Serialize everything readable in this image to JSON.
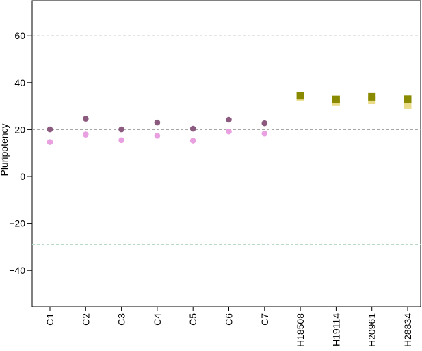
{
  "chart_data": {
    "type": "scatter",
    "ylabel": "Pluripotency",
    "ylim": [
      -56,
      76
    ],
    "yticks": [
      -40,
      -20,
      0,
      20,
      40,
      60
    ],
    "categories": [
      "C1",
      "C2",
      "C3",
      "C4",
      "C5",
      "C6",
      "C7",
      "H18508",
      "H19114",
      "H20961",
      "H28834"
    ],
    "reference_lines": [
      {
        "y": 60,
        "color": "#999999"
      },
      {
        "y": 20,
        "color": "#999999"
      },
      {
        "y": -29,
        "color": "#b8d8c8"
      }
    ],
    "series": [
      {
        "marker": "circle",
        "color": "#8b5a7e",
        "values": [
          20.1,
          24.6,
          20.1,
          23.0,
          20.4,
          24.2,
          22.7,
          null,
          null,
          null,
          null
        ]
      },
      {
        "marker": "circle",
        "color": "#e8a0e0",
        "values": [
          14.7,
          17.9,
          15.5,
          17.4,
          15.3,
          19.2,
          18.3,
          null,
          null,
          null,
          null
        ]
      },
      {
        "marker": "square",
        "color": "#eadb88",
        "values": [
          null,
          null,
          null,
          null,
          null,
          null,
          null,
          34.0,
          31.7,
          32.5,
          30.5
        ]
      },
      {
        "marker": "square",
        "color": "#8a8a00",
        "values": [
          null,
          null,
          null,
          null,
          null,
          null,
          null,
          34.5,
          32.9,
          34.0,
          33.0
        ]
      }
    ]
  }
}
